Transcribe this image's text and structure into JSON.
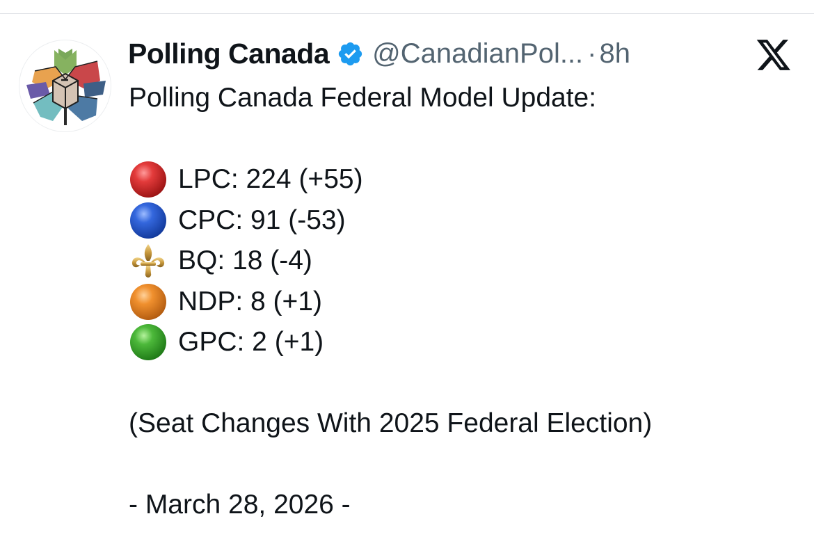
{
  "tweet": {
    "author": {
      "display_name": "Polling Canada",
      "handle": "@CanadianPol...",
      "separator": "·",
      "time": "8h",
      "verified": true,
      "avatar_icon": "polling-canada-maple-logo"
    },
    "platform_icon": "x-logo-icon",
    "headline": "Polling Canada Federal Model Update:",
    "results": [
      {
        "emoji": "red-circle",
        "color": "#dd2e2e",
        "text": "LPC: 224 (+55)"
      },
      {
        "emoji": "blue-circle",
        "color": "#2a5fcf",
        "text": "CPC: 91 (-53)"
      },
      {
        "emoji": "fleur-de-lis",
        "color": "#c49a45",
        "text": "BQ: 18 (-4)"
      },
      {
        "emoji": "orange-circle",
        "color": "#f08a2a",
        "text": "NDP: 8 (+1)"
      },
      {
        "emoji": "green-circle",
        "color": "#46b23a",
        "text": "GPC: 2 (+1)"
      }
    ],
    "note": "(Seat Changes With 2025 Federal Election)",
    "date_line": "- March 28, 2026 -"
  },
  "colors": {
    "text_primary": "#0f1419",
    "text_secondary": "#536471",
    "verified_badge": "#1d9bf0"
  }
}
